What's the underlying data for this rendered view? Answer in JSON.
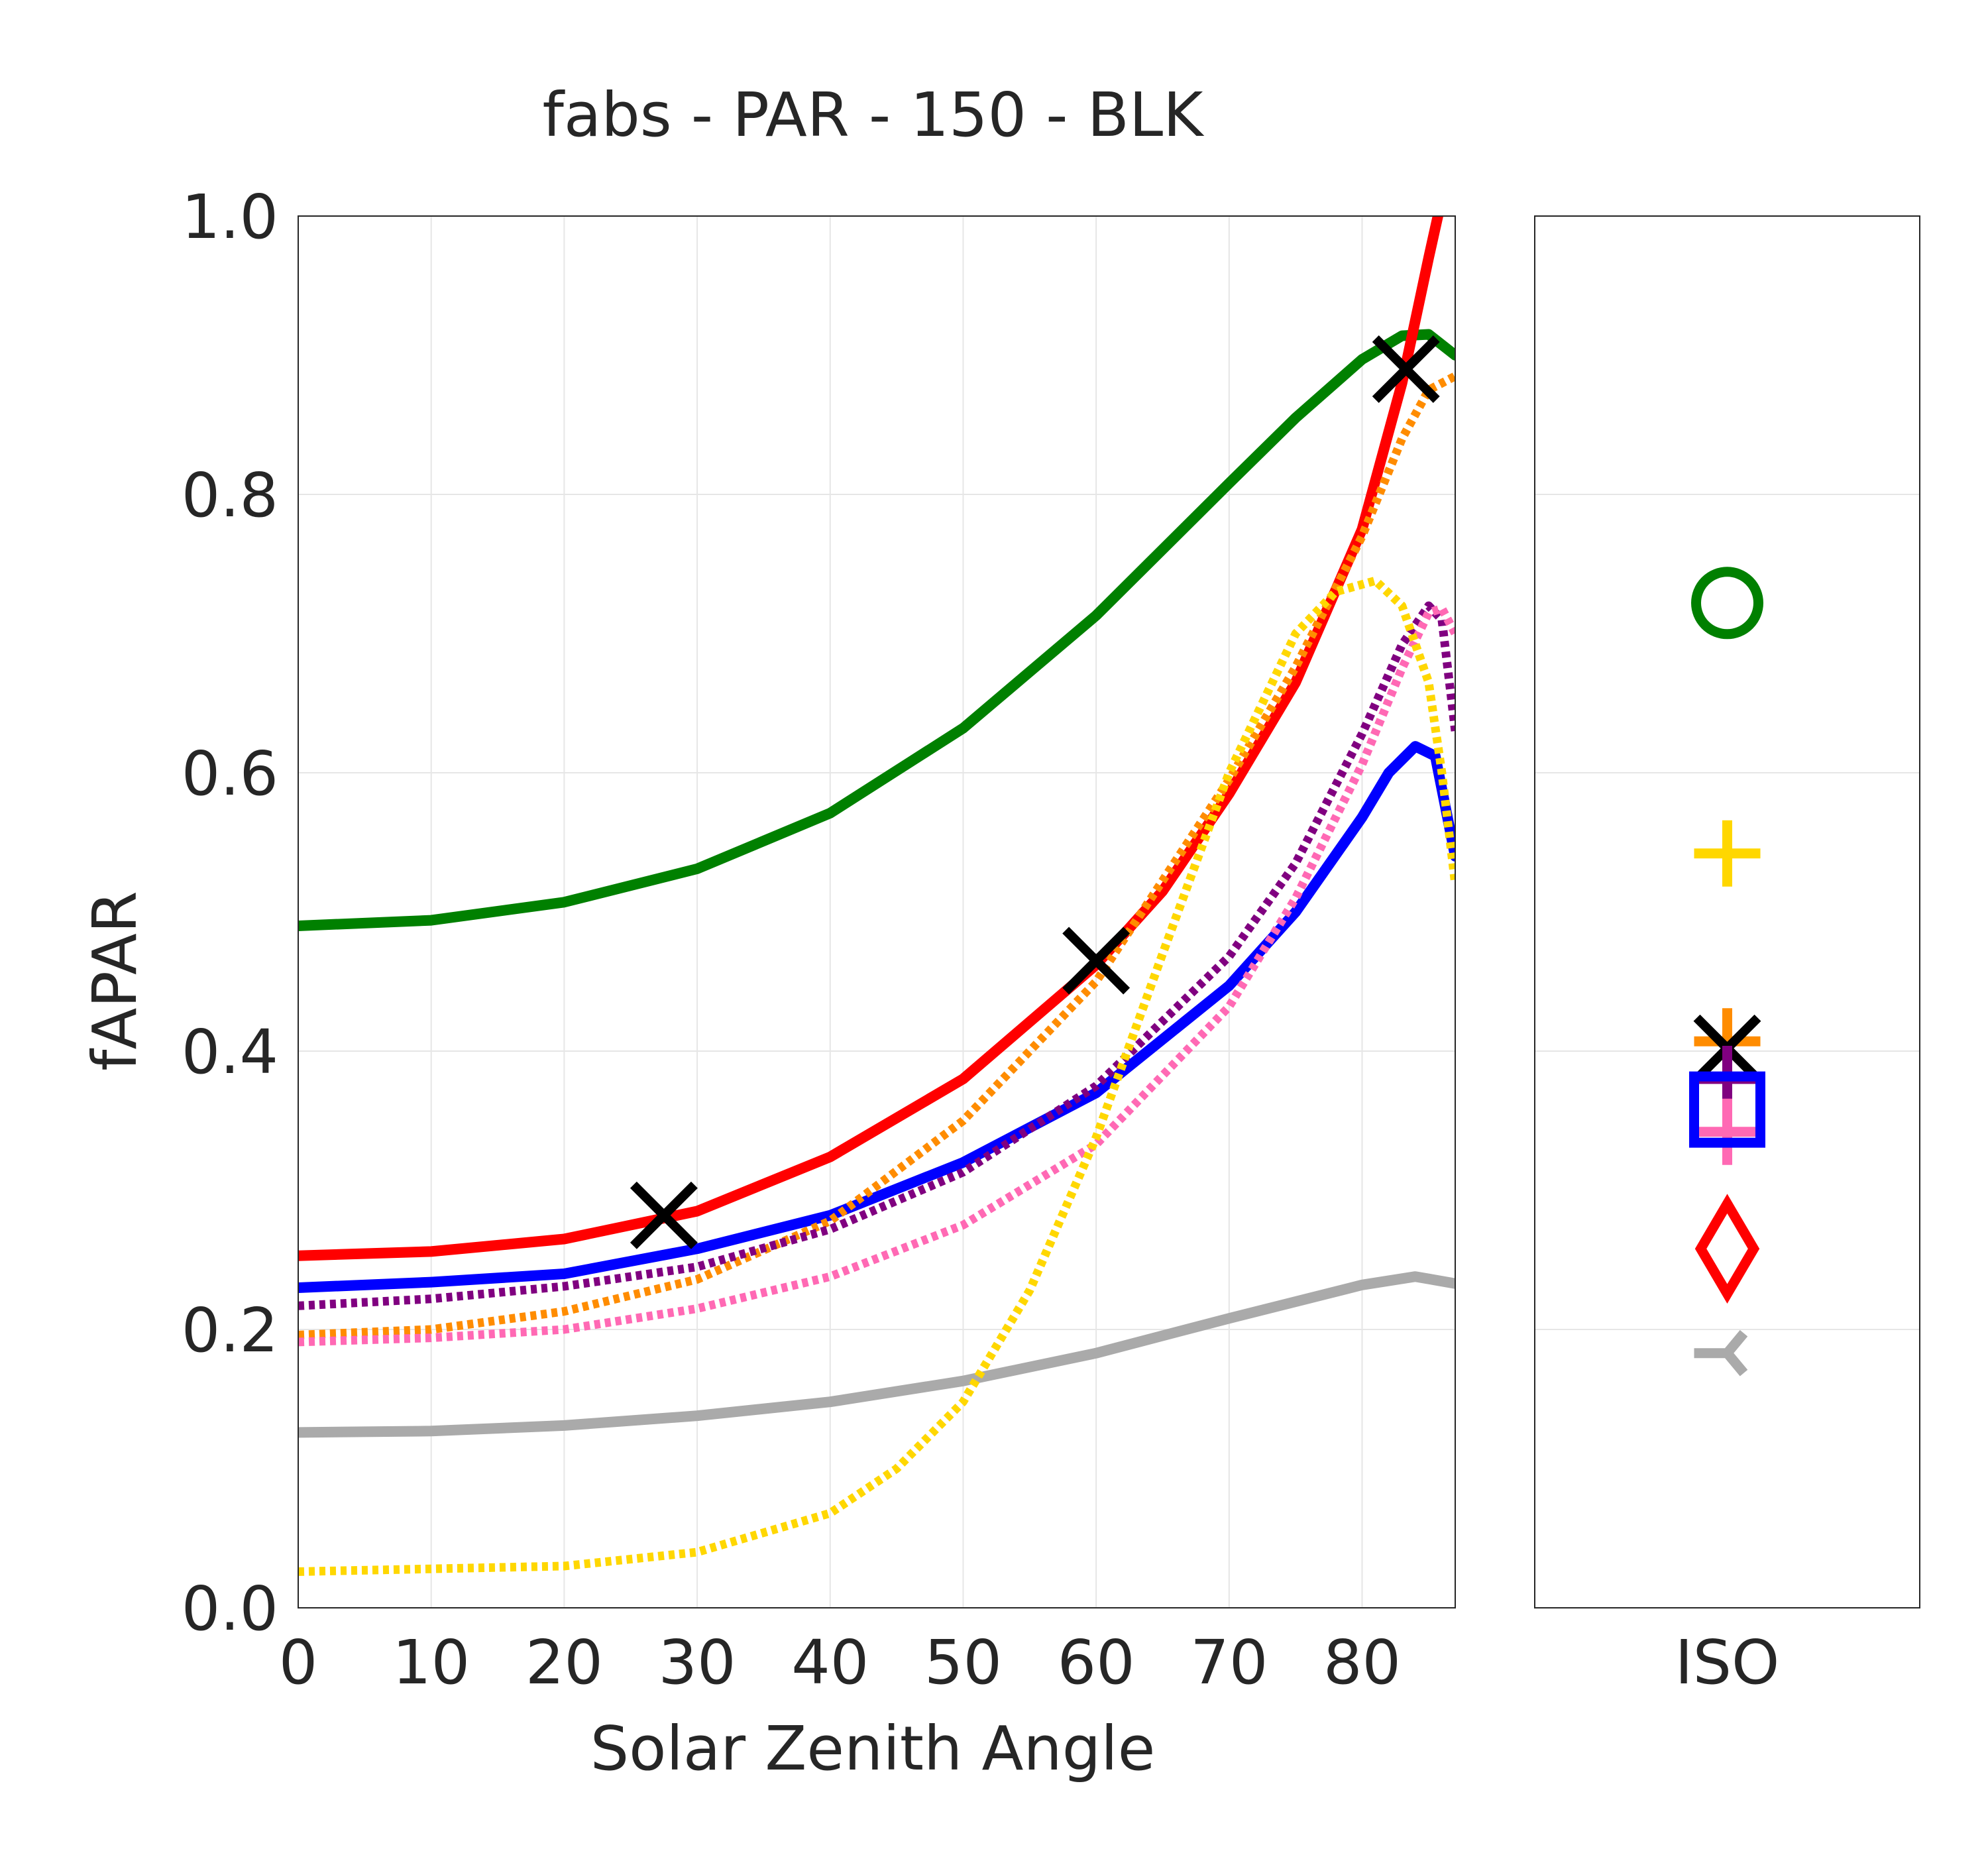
{
  "chart_data": [
    {
      "type": "line",
      "title": "fabs - PAR - 150 - BLK",
      "xlabel": "Solar Zenith Angle",
      "ylabel": "fAPAR",
      "xlim": [
        0,
        87
      ],
      "ylim": [
        0.0,
        1.0
      ],
      "x_ticks": [
        "0",
        "10",
        "20",
        "30",
        "40",
        "50",
        "60",
        "70",
        "80"
      ],
      "y_ticks": [
        "0.0",
        "0.2",
        "0.4",
        "0.6",
        "0.8",
        "1.0"
      ],
      "grid": true,
      "series": [
        {
          "color": "#008000",
          "style": "solid",
          "points": [
            [
              0,
              0.49
            ],
            [
              10,
              0.494
            ],
            [
              20,
              0.507
            ],
            [
              30,
              0.531
            ],
            [
              40,
              0.571
            ],
            [
              50,
              0.632
            ],
            [
              60,
              0.713
            ],
            [
              70,
              0.808
            ],
            [
              75,
              0.855
            ],
            [
              80,
              0.897
            ],
            [
              83,
              0.914
            ],
            [
              85,
              0.915
            ],
            [
              87,
              0.9
            ]
          ]
        },
        {
          "color": "#ff0000",
          "style": "solid",
          "points": [
            [
              0,
              0.253
            ],
            [
              10,
              0.256
            ],
            [
              20,
              0.265
            ],
            [
              30,
              0.285
            ],
            [
              40,
              0.324
            ],
            [
              50,
              0.38
            ],
            [
              60,
              0.462
            ],
            [
              65,
              0.515
            ],
            [
              70,
              0.585
            ],
            [
              75,
              0.665
            ],
            [
              80,
              0.775
            ],
            [
              83,
              0.88
            ],
            [
              85,
              0.97
            ],
            [
              85.7,
              1.0
            ]
          ]
        },
        {
          "color": "#0000ff",
          "style": "solid",
          "points": [
            [
              0,
              0.23
            ],
            [
              10,
              0.234
            ],
            [
              20,
              0.24
            ],
            [
              30,
              0.258
            ],
            [
              40,
              0.282
            ],
            [
              50,
              0.32
            ],
            [
              60,
              0.37
            ],
            [
              70,
              0.447
            ],
            [
              75,
              0.5
            ],
            [
              80,
              0.568
            ],
            [
              82,
              0.6
            ],
            [
              84,
              0.619
            ],
            [
              85.5,
              0.612
            ],
            [
              87,
              0.54
            ]
          ]
        },
        {
          "color": "#aaaaaa",
          "style": "solid",
          "points": [
            [
              0,
              0.126
            ],
            [
              10,
              0.127
            ],
            [
              20,
              0.131
            ],
            [
              30,
              0.138
            ],
            [
              40,
              0.148
            ],
            [
              50,
              0.163
            ],
            [
              60,
              0.183
            ],
            [
              70,
              0.208
            ],
            [
              80,
              0.232
            ],
            [
              84,
              0.238
            ],
            [
              87,
              0.233
            ]
          ]
        },
        {
          "color": "#ff8c00",
          "style": "dotted",
          "points": [
            [
              0,
              0.196
            ],
            [
              10,
              0.2
            ],
            [
              20,
              0.213
            ],
            [
              30,
              0.236
            ],
            [
              40,
              0.278
            ],
            [
              50,
              0.35
            ],
            [
              60,
              0.45
            ],
            [
              70,
              0.595
            ],
            [
              75,
              0.676
            ],
            [
              80,
              0.77
            ],
            [
              83,
              0.84
            ],
            [
              85,
              0.875
            ],
            [
              87,
              0.885
            ]
          ]
        },
        {
          "color": "#800080",
          "style": "dotted",
          "points": [
            [
              0,
              0.217
            ],
            [
              10,
              0.222
            ],
            [
              20,
              0.231
            ],
            [
              30,
              0.245
            ],
            [
              40,
              0.272
            ],
            [
              50,
              0.313
            ],
            [
              60,
              0.375
            ],
            [
              70,
              0.468
            ],
            [
              75,
              0.535
            ],
            [
              80,
              0.628
            ],
            [
              83,
              0.692
            ],
            [
              85,
              0.72
            ],
            [
              86,
              0.71
            ],
            [
              87,
              0.63
            ]
          ]
        },
        {
          "color": "#ff69b4",
          "style": "dotted",
          "points": [
            [
              0,
              0.191
            ],
            [
              10,
              0.194
            ],
            [
              20,
              0.2
            ],
            [
              30,
              0.215
            ],
            [
              40,
              0.238
            ],
            [
              50,
              0.275
            ],
            [
              60,
              0.333
            ],
            [
              70,
              0.432
            ],
            [
              75,
              0.51
            ],
            [
              80,
              0.606
            ],
            [
              83,
              0.675
            ],
            [
              85,
              0.715
            ],
            [
              86,
              0.718
            ],
            [
              87,
              0.7
            ]
          ]
        },
        {
          "color": "#ffd700",
          "style": "dotted",
          "points": [
            [
              0,
              0.026
            ],
            [
              10,
              0.028
            ],
            [
              20,
              0.03
            ],
            [
              30,
              0.04
            ],
            [
              40,
              0.068
            ],
            [
              45,
              0.1
            ],
            [
              50,
              0.148
            ],
            [
              55,
              0.228
            ],
            [
              60,
              0.338
            ],
            [
              65,
              0.47
            ],
            [
              70,
              0.6
            ],
            [
              75,
              0.7
            ],
            [
              78,
              0.73
            ],
            [
              81,
              0.738
            ],
            [
              83,
              0.72
            ],
            [
              85,
              0.665
            ],
            [
              86,
              0.6
            ],
            [
              87,
              0.52
            ]
          ]
        }
      ],
      "markers": [
        {
          "symbol": "x",
          "color": "#000000",
          "x": 27.5,
          "y": 0.282
        },
        {
          "symbol": "x",
          "color": "#000000",
          "x": 60,
          "y": 0.465
        },
        {
          "symbol": "x",
          "color": "#000000",
          "x": 83.3,
          "y": 0.89
        }
      ]
    },
    {
      "type": "scatter",
      "xlabel": "",
      "x_ticks": [
        "ISO"
      ],
      "ylim": [
        0.0,
        1.0
      ],
      "grid": true,
      "points": [
        {
          "symbol": "circle",
          "color": "#008000",
          "y": 0.722
        },
        {
          "symbol": "plus",
          "color": "#ffd700",
          "y": 0.542
        },
        {
          "symbol": "plus",
          "color": "#ff8c00",
          "y": 0.407
        },
        {
          "symbol": "x",
          "color": "#000000",
          "y": 0.402
        },
        {
          "symbol": "plus",
          "color": "#800080",
          "y": 0.38
        },
        {
          "symbol": "plus",
          "color": "#ff69b4",
          "y": 0.342
        },
        {
          "symbol": "square",
          "color": "#0000ff",
          "y": 0.358
        },
        {
          "symbol": "diamond",
          "color": "#ff0000",
          "y": 0.258
        },
        {
          "symbol": "tri_down",
          "color": "#aaaaaa",
          "y": 0.183
        }
      ]
    }
  ]
}
